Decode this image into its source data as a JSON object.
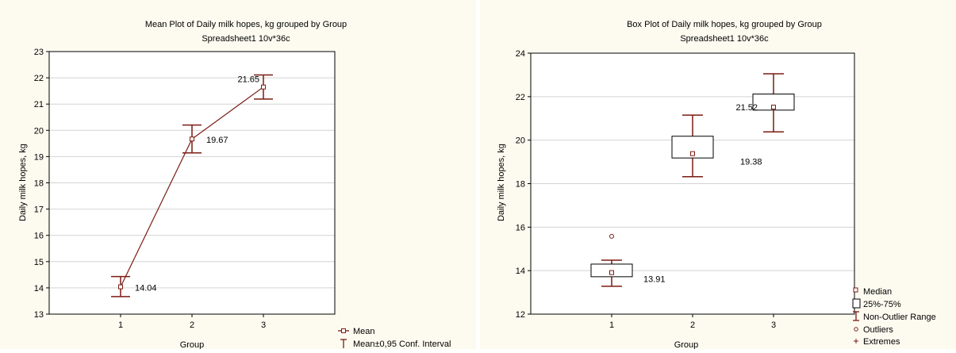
{
  "colors": {
    "series": "#7b1b12",
    "grid": "#d4d4d4",
    "plot_bg": "#ffffff",
    "panel_bg": "#fdfbf0",
    "axis": "#000000"
  },
  "chart_data": [
    {
      "type": "line",
      "title": "Mean Plot of Daily milk hopes, kg grouped by  Group",
      "subtitle": "Spreadsheet1 10v*36c",
      "xlabel": "Group",
      "ylabel": "Daily milk hopes, kg",
      "categories": [
        "1",
        "2",
        "3"
      ],
      "ylim": [
        13,
        23
      ],
      "yticks": [
        "13",
        "14",
        "15",
        "16",
        "17",
        "18",
        "19",
        "20",
        "21",
        "22",
        "23"
      ],
      "grid": true,
      "series": [
        {
          "name": "Mean",
          "values": [
            14.04,
            19.67,
            21.65
          ],
          "labels": [
            "14.04",
            "19.67",
            "21.65"
          ],
          "ci_low": [
            13.67,
            19.14,
            21.19
          ],
          "ci_high": [
            14.43,
            20.2,
            22.11
          ]
        }
      ],
      "legend": [
        "Mean",
        "Mean±0,95 Conf. Interval"
      ],
      "legend_position": "bottom-right"
    },
    {
      "type": "box",
      "title": "Box Plot of Daily milk hopes, kg grouped by  Group",
      "subtitle": "Spreadsheet1 10v*36c",
      "xlabel": "Group",
      "ylabel": "Daily milk hopes, kg",
      "categories": [
        "1",
        "2",
        "3"
      ],
      "ylim": [
        12,
        24
      ],
      "yticks": [
        "12",
        "14",
        "16",
        "18",
        "20",
        "22",
        "24"
      ],
      "grid": true,
      "series": [
        {
          "median": [
            13.91,
            19.38,
            21.52
          ],
          "median_labels": [
            "13.91",
            "19.38",
            "21.52"
          ],
          "q1": [
            13.72,
            19.18,
            21.38
          ],
          "q3": [
            14.3,
            20.18,
            22.12
          ],
          "whisker_low": [
            13.28,
            18.32,
            20.38
          ],
          "whisker_high": [
            14.48,
            21.15,
            23.05
          ],
          "outliers": [
            [
              15.58
            ],
            [],
            []
          ]
        }
      ],
      "legend": [
        "Median",
        "25%-75%",
        "Non-Outlier Range",
        "Outliers",
        "Extremes"
      ],
      "legend_position": "bottom-right"
    }
  ]
}
